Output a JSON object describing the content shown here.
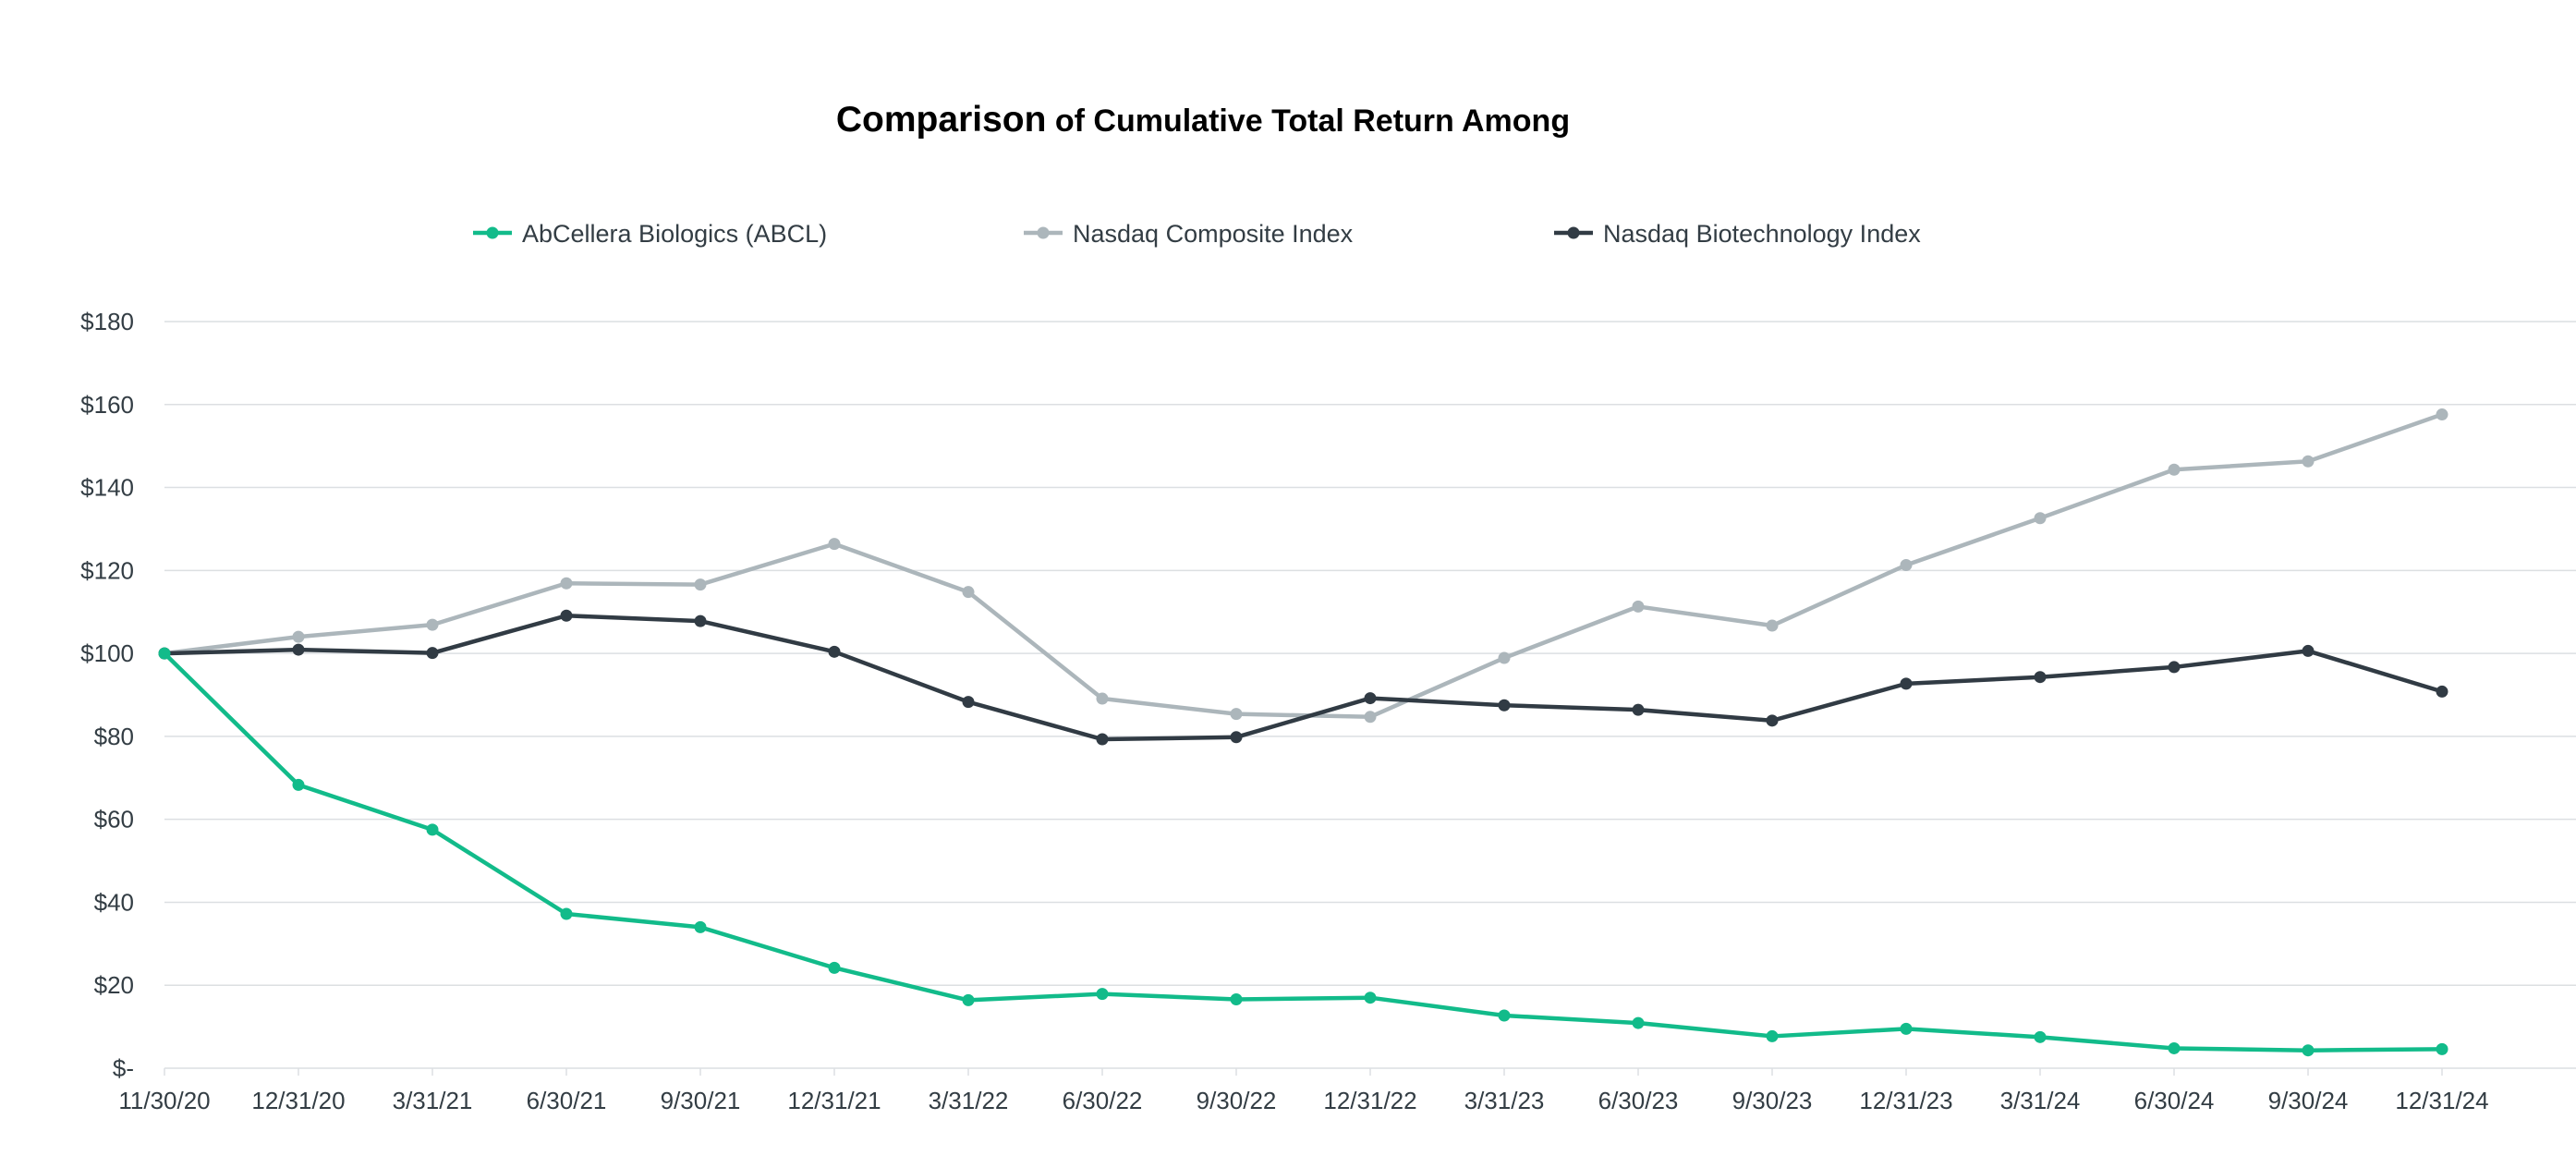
{
  "chart_data": {
    "type": "line",
    "title_main": "Comparison",
    "title_rest": " of Cumulative Total Return Among",
    "categories": [
      "11/30/20",
      "12/31/20",
      "3/31/21",
      "6/30/21",
      "9/30/21",
      "12/31/21",
      "3/31/22",
      "6/30/22",
      "9/30/22",
      "12/31/22",
      "3/31/23",
      "6/30/23",
      "9/30/23",
      "12/31/23",
      "3/31/24",
      "6/30/24",
      "9/30/24",
      "12/31/24"
    ],
    "y_tick_labels": [
      "$-",
      "$20",
      "$40",
      "$60",
      "$80",
      "$100",
      "$120",
      "$140",
      "$160",
      "$180"
    ],
    "ylim": [
      0,
      180
    ],
    "y_step": 20,
    "legend_position": "top",
    "series": [
      {
        "name": "AbCellera Biologics (ABCL)",
        "color": "#12bb8a",
        "values": [
          100,
          68.3,
          57.5,
          37.2,
          34.0,
          24.2,
          16.4,
          17.9,
          16.6,
          17.0,
          12.7,
          10.9,
          7.7,
          9.5,
          7.5,
          4.8,
          4.3,
          4.6
        ]
      },
      {
        "name": "Nasdaq Composite Index",
        "color": "#acb6bb",
        "values": [
          100,
          104.0,
          106.9,
          116.9,
          116.6,
          126.4,
          114.8,
          89.1,
          85.4,
          84.7,
          98.9,
          111.3,
          106.7,
          121.3,
          132.6,
          144.3,
          146.3,
          157.6
        ]
      },
      {
        "name": "Nasdaq Biotechnology Index",
        "color": "#313b44",
        "values": [
          100,
          100.9,
          100.1,
          109.1,
          107.8,
          100.4,
          88.3,
          79.3,
          79.8,
          89.2,
          87.5,
          86.4,
          83.8,
          92.7,
          94.3,
          96.7,
          100.6,
          90.8
        ]
      }
    ]
  }
}
